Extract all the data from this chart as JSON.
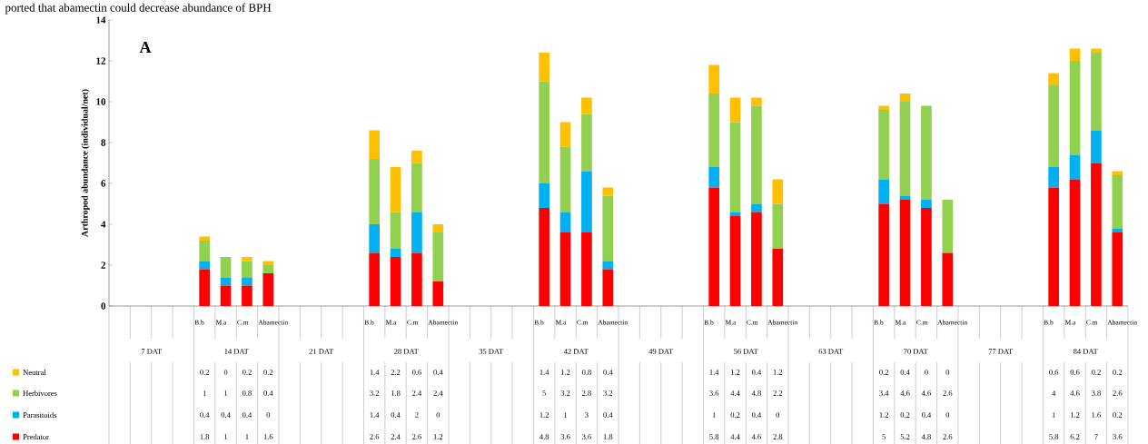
{
  "chart_data": {
    "type": "bar",
    "stacked": true,
    "ylabel": "Arthropod abundance (individual/net)",
    "annotations": [
      "ported that abamectin could decrease abundance of BPH",
      "A",
      "7 DAT",
      "14 DAT",
      "21 DAT",
      "28 DAT",
      "35 DAT",
      "42 DAT",
      "49 DAT",
      "56 DAT",
      "63 DAT",
      "70 DAT",
      "77 DAT",
      "84 DAT"
    ],
    "categories": [
      null,
      null,
      null,
      null,
      "B.b",
      "M.a",
      "C.m",
      "Abamectin",
      null,
      null,
      null,
      null,
      "B.b",
      "M.a",
      "C.m",
      "Abamectin",
      null,
      null,
      null,
      null,
      "B.b",
      "M.a",
      "C.m",
      "Abamectin",
      null,
      null,
      null,
      null,
      "B.b",
      "M.a",
      "C.m",
      "Abamectin",
      null,
      null,
      null,
      null,
      "B.b",
      "M.a",
      "C.m",
      "Abamectin",
      null,
      null,
      null,
      null,
      "B.b",
      "M.a",
      "C.m",
      "Abamectin"
    ],
    "series": [
      {
        "name": "Predator",
        "color": "#ff0000",
        "values": [
          null,
          null,
          null,
          null,
          1.8,
          1,
          1,
          1.6,
          null,
          null,
          null,
          null,
          2.6,
          2.4,
          2.6,
          1.2,
          null,
          null,
          null,
          null,
          4.8,
          3.6,
          3.6,
          1.8,
          null,
          null,
          null,
          null,
          5.8,
          4.4,
          4.6,
          2.8,
          null,
          null,
          null,
          null,
          5,
          5.2,
          4.8,
          2.6,
          null,
          null,
          null,
          null,
          5.8,
          6.2,
          7,
          3.6
        ]
      },
      {
        "name": "Parasitoids",
        "color": "#00b0f0",
        "values": [
          null,
          null,
          null,
          null,
          0.4,
          0.4,
          0.4,
          0,
          null,
          null,
          null,
          null,
          1.4,
          0.4,
          2,
          0,
          null,
          null,
          null,
          null,
          1.2,
          1,
          3,
          0.4,
          null,
          null,
          null,
          null,
          1,
          0.2,
          0.4,
          0,
          null,
          null,
          null,
          null,
          1.2,
          0.2,
          0.4,
          0,
          null,
          null,
          null,
          null,
          1,
          1.2,
          1.6,
          0.2
        ]
      },
      {
        "name": "Herbivores",
        "color": "#92d050",
        "values": [
          null,
          null,
          null,
          null,
          1,
          1,
          0.8,
          0.4,
          null,
          null,
          null,
          null,
          3.2,
          1.8,
          2.4,
          2.4,
          null,
          null,
          null,
          null,
          5,
          3.2,
          2.8,
          3.2,
          null,
          null,
          null,
          null,
          3.6,
          4.4,
          4.8,
          2.2,
          null,
          null,
          null,
          null,
          3.4,
          4.6,
          4.6,
          2.6,
          null,
          null,
          null,
          null,
          4,
          4.6,
          3.8,
          2.6
        ]
      },
      {
        "name": "Neutral",
        "color": "#ffc000",
        "values": [
          null,
          null,
          null,
          null,
          0.2,
          0,
          0.2,
          0.2,
          null,
          null,
          null,
          null,
          1.4,
          2.2,
          0.6,
          0.4,
          null,
          null,
          null,
          null,
          1.4,
          1.2,
          0.8,
          0.4,
          null,
          null,
          null,
          null,
          1.4,
          1.2,
          0.4,
          1.2,
          null,
          null,
          null,
          null,
          0.2,
          0.4,
          0,
          0,
          null,
          null,
          null,
          null,
          0.6,
          0.6,
          0.2,
          0.2
        ]
      }
    ],
    "ylim": [
      0,
      14
    ],
    "yticks": [
      0,
      2,
      4,
      6,
      8,
      10,
      12,
      14
    ],
    "data_labels": true,
    "legend": "bottom left"
  }
}
